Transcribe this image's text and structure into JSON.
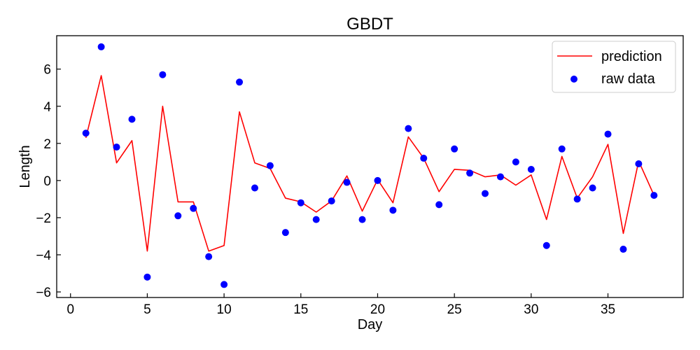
{
  "chart_data": {
    "type": "line",
    "title": "GBDT",
    "xlabel": "Day",
    "ylabel": "Length",
    "xlim": [
      -0.9,
      39.9
    ],
    "ylim": [
      -6.3,
      7.8
    ],
    "xticks": [
      0,
      5,
      10,
      15,
      20,
      25,
      30,
      35
    ],
    "yticks": [
      -6,
      -4,
      -2,
      0,
      2,
      4,
      6
    ],
    "grid": false,
    "legend_position": "top-right",
    "x": [
      1,
      2,
      3,
      4,
      5,
      6,
      7,
      8,
      9,
      10,
      11,
      12,
      13,
      14,
      15,
      16,
      17,
      18,
      19,
      20,
      21,
      22,
      23,
      24,
      25,
      26,
      27,
      28,
      29,
      30,
      31,
      32,
      33,
      34,
      35,
      36,
      37,
      38
    ],
    "series": [
      {
        "name": "prediction",
        "kind": "line",
        "color": "#ff0000",
        "values": [
          2.3,
          5.65,
          0.95,
          2.15,
          -3.8,
          4.0,
          -1.15,
          -1.15,
          -3.8,
          -3.5,
          3.7,
          0.95,
          0.65,
          -0.95,
          -1.15,
          -1.7,
          -1.1,
          0.25,
          -1.65,
          0.05,
          -1.2,
          2.35,
          1.2,
          -0.6,
          0.6,
          0.55,
          0.2,
          0.3,
          -0.25,
          0.3,
          -2.1,
          1.3,
          -0.95,
          0.2,
          1.95,
          -2.85,
          1.05,
          -0.8
        ]
      },
      {
        "name": "raw data",
        "kind": "scatter",
        "color": "#0000ff",
        "values": [
          2.55,
          7.2,
          1.8,
          3.3,
          -5.2,
          5.7,
          -1.9,
          -1.5,
          -4.1,
          -5.6,
          5.3,
          -0.4,
          0.8,
          -2.8,
          -1.2,
          -2.1,
          -1.1,
          -0.1,
          -2.1,
          0.0,
          -1.6,
          2.8,
          1.2,
          -1.3,
          1.7,
          0.4,
          -0.7,
          0.2,
          1.0,
          0.6,
          -3.5,
          1.7,
          -1.0,
          -0.4,
          2.5,
          -3.7,
          0.9,
          -0.8
        ]
      }
    ]
  }
}
